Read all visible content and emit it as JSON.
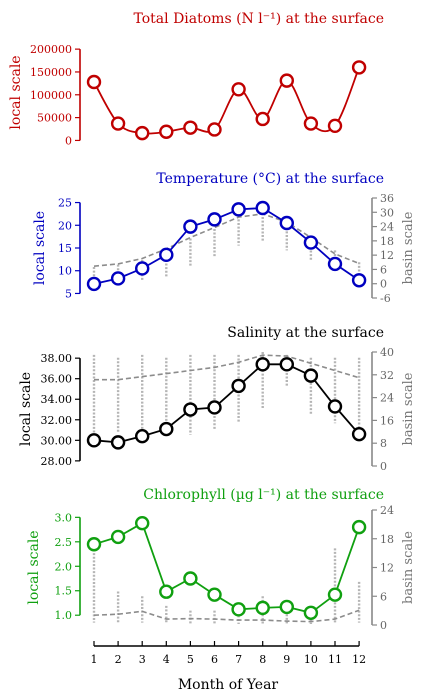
{
  "colors": {
    "diatoms": "#c00000",
    "temperature": "#0000c0",
    "salinity": "#000000",
    "chlorophyll": "#10a010",
    "basin": "#8c8c8c"
  },
  "chart_data": [
    {
      "type": "line",
      "title": "Total Diatoms (N l⁻¹) at the surface",
      "ylabel": "local scale",
      "x": [
        1,
        2,
        3,
        4,
        5,
        6,
        7,
        8,
        9,
        10,
        11,
        12
      ],
      "ylim": [
        -10000,
        220000
      ],
      "yticks": [
        0,
        50000,
        100000,
        150000,
        200000
      ],
      "ytick_labels": [
        "0",
        "50000",
        "100000",
        "150000",
        "200000"
      ],
      "series": [
        {
          "values": [
            128000,
            37000,
            16000,
            19000,
            28000,
            24000,
            112000,
            47000,
            131000,
            37000,
            32000,
            160000
          ]
        }
      ]
    },
    {
      "type": "line",
      "title": "Temperature (°C) at the surface",
      "ylabel": "local scale",
      "y2label": "basin scale",
      "x": [
        1,
        2,
        3,
        4,
        5,
        6,
        7,
        8,
        9,
        10,
        11,
        12
      ],
      "ylim": [
        4,
        26
      ],
      "yticks": [
        5,
        10,
        15,
        20,
        25
      ],
      "ytick_labels": [
        "5",
        "10",
        "15",
        "20",
        "25"
      ],
      "y2lim": [
        -6,
        36
      ],
      "y2ticks": [
        -6,
        0,
        6,
        12,
        18,
        24,
        30,
        36
      ],
      "y2tick_labels": [
        "-6",
        "0",
        "6",
        "12",
        "18",
        "24",
        "30",
        "36"
      ],
      "series": [
        {
          "values": [
            7.1,
            8.3,
            10.5,
            13.5,
            19.7,
            21.3,
            23.5,
            23.8,
            20.5,
            16.2,
            11.5,
            7.9
          ]
        },
        {
          "values": [
            11.0,
            11.5,
            12.7,
            14.8,
            17.3,
            19.5,
            21.8,
            22.5,
            20.7,
            17.3,
            13.7,
            11.6
          ]
        }
      ],
      "basin_scatter": [
        {
          "min": -1,
          "max": 7
        },
        {
          "min": 0,
          "max": 8
        },
        {
          "min": 1,
          "max": 10
        },
        {
          "min": 3,
          "max": 13
        },
        {
          "min": 7,
          "max": 19
        },
        {
          "min": 11,
          "max": 23
        },
        {
          "min": 16,
          "max": 27
        },
        {
          "min": 18,
          "max": 28
        },
        {
          "min": 14,
          "max": 25
        },
        {
          "min": 10,
          "max": 20
        },
        {
          "min": 5,
          "max": 14
        },
        {
          "min": 2,
          "max": 9
        }
      ]
    },
    {
      "type": "line",
      "title": "Salinity at the surface",
      "ylabel": "local scale",
      "y2label": "basin scale",
      "x": [
        1,
        2,
        3,
        4,
        5,
        6,
        7,
        8,
        9,
        10,
        11,
        12
      ],
      "ylim": [
        27.5,
        38.6
      ],
      "yticks": [
        28,
        30,
        32,
        34,
        36,
        38
      ],
      "ytick_labels": [
        "28.00",
        "30.00",
        "32.00",
        "34.00",
        "36.00",
        "38.00"
      ],
      "y2lim": [
        0,
        40
      ],
      "y2ticks": [
        0,
        8,
        16,
        24,
        32,
        40
      ],
      "y2tick_labels": [
        "0",
        "8",
        "16",
        "24",
        "32",
        "40"
      ],
      "series": [
        {
          "values": [
            30.0,
            29.8,
            30.4,
            31.1,
            33.0,
            33.2,
            35.3,
            37.4,
            37.4,
            36.3,
            33.3,
            30.6
          ]
        },
        {
          "values": [
            35.9,
            35.9,
            36.2,
            36.5,
            36.8,
            37.1,
            37.6,
            38.3,
            38.2,
            37.5,
            36.8,
            36.1
          ]
        }
      ],
      "basin_scatter": [
        {
          "min": 10,
          "max": 39
        },
        {
          "min": 12,
          "max": 38
        },
        {
          "min": 10,
          "max": 39
        },
        {
          "min": 14,
          "max": 38
        },
        {
          "min": 11,
          "max": 39
        },
        {
          "min": 13,
          "max": 39
        },
        {
          "min": 15,
          "max": 39
        },
        {
          "min": 20,
          "max": 40
        },
        {
          "min": 28,
          "max": 39
        },
        {
          "min": 18,
          "max": 38
        },
        {
          "min": 15,
          "max": 38
        },
        {
          "min": 12,
          "max": 38
        }
      ]
    },
    {
      "type": "line",
      "title": "Chlorophyll (µg l⁻¹) at the surface",
      "ylabel": "local scale",
      "y2label": "basin scale",
      "xlabel": "Month of Year",
      "x": [
        1,
        2,
        3,
        4,
        5,
        6,
        7,
        8,
        9,
        10,
        11,
        12
      ],
      "xtick_labels": [
        "1",
        "2",
        "3",
        "4",
        "5",
        "6",
        "7",
        "8",
        "9",
        "10",
        "11",
        "12"
      ],
      "ylim": [
        0.8,
        3.15
      ],
      "yticks": [
        1.0,
        1.5,
        2.0,
        2.5,
        3.0
      ],
      "ytick_labels": [
        "1.0",
        "1.5",
        "2.0",
        "2.5",
        "3.0"
      ],
      "y2lim": [
        0,
        24
      ],
      "y2ticks": [
        0,
        6,
        12,
        18,
        24
      ],
      "y2tick_labels": [
        "0",
        "6",
        "12",
        "18",
        "24"
      ],
      "series": [
        {
          "values": [
            2.45,
            2.6,
            2.88,
            1.48,
            1.75,
            1.42,
            1.12,
            1.15,
            1.17,
            1.05,
            1.42,
            2.8
          ]
        },
        {
          "values": [
            1.0,
            1.02,
            1.08,
            0.92,
            0.93,
            0.92,
            0.9,
            0.9,
            0.88,
            0.87,
            0.92,
            1.1
          ]
        }
      ],
      "basin_scatter": [
        {
          "min": 0.5,
          "max": 18
        },
        {
          "min": 0.5,
          "max": 7
        },
        {
          "min": 0.5,
          "max": 6
        },
        {
          "min": 0.3,
          "max": 4
        },
        {
          "min": 0.3,
          "max": 3
        },
        {
          "min": 0.3,
          "max": 3
        },
        {
          "min": 0.2,
          "max": 2
        },
        {
          "min": 0.2,
          "max": 6
        },
        {
          "min": 0.2,
          "max": 3
        },
        {
          "min": 0.2,
          "max": 2
        },
        {
          "min": 0.3,
          "max": 16
        },
        {
          "min": 0.5,
          "max": 9
        }
      ]
    }
  ]
}
